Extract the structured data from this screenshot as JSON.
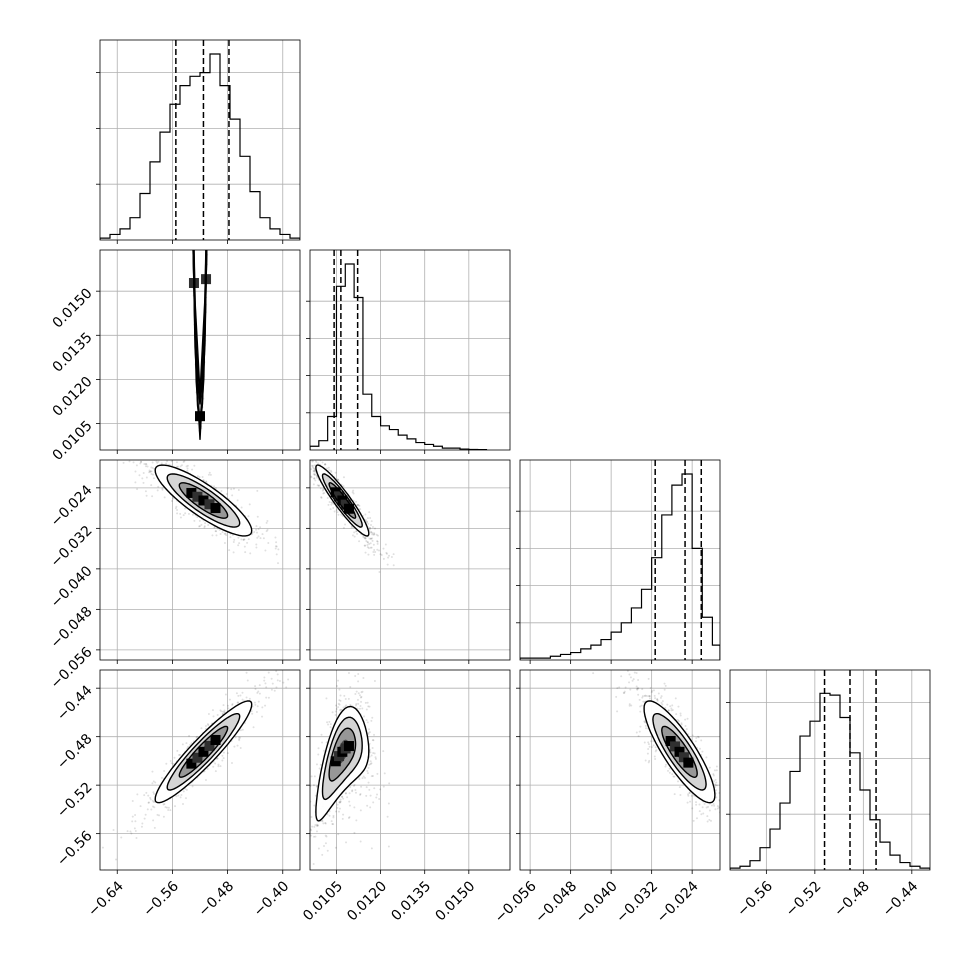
{
  "chart_data": {
    "type": "corner",
    "parameters": [
      {
        "range": [
          -0.665,
          -0.375
        ],
        "ticks": [
          -0.64,
          -0.56,
          -0.48,
          -0.4
        ],
        "tick_labels": [
          "−0.64",
          "−0.56",
          "−0.48",
          "−0.40"
        ],
        "quantiles": [
          -0.555,
          -0.515,
          -0.478
        ],
        "hist_bins": [
          -0.665,
          -0.6505,
          -0.636,
          -0.6215,
          -0.607,
          -0.5925,
          -0.578,
          -0.5635,
          -0.549,
          -0.5345,
          -0.52,
          -0.5055,
          -0.491,
          -0.4765,
          -0.462,
          -0.4475,
          -0.433,
          -0.4185,
          -0.404,
          -0.3895,
          -0.375
        ],
        "hist_counts": [
          0.01,
          0.03,
          0.06,
          0.12,
          0.25,
          0.42,
          0.58,
          0.73,
          0.83,
          0.88,
          0.9,
          1.0,
          0.83,
          0.65,
          0.45,
          0.26,
          0.12,
          0.06,
          0.03,
          0.01
        ]
      },
      {
        "range": [
          0.0096,
          0.0164
        ],
        "ticks": [
          0.0105,
          0.012,
          0.0135,
          0.015
        ],
        "tick_labels": [
          "0.0105",
          "0.0120",
          "0.0135",
          "0.0150"
        ],
        "quantiles": [
          0.01042,
          0.01065,
          0.01122
        ],
        "hist_bins": [
          0.0096,
          0.0099,
          0.0102,
          0.0105,
          0.0108,
          0.0111,
          0.0114,
          0.0117,
          0.012,
          0.0123,
          0.0126,
          0.0129,
          0.0132,
          0.0135,
          0.0138,
          0.0141,
          0.0144,
          0.0147,
          0.015,
          0.0153,
          0.0156
        ],
        "hist_counts": [
          0.02,
          0.05,
          0.18,
          0.88,
          1.0,
          0.82,
          0.3,
          0.18,
          0.13,
          0.11,
          0.08,
          0.06,
          0.04,
          0.03,
          0.02,
          0.01,
          0.01,
          0.005,
          0.003,
          0.002
        ]
      },
      {
        "range": [
          -0.058,
          -0.0185
        ],
        "ticks": [
          -0.056,
          -0.048,
          -0.04,
          -0.032,
          -0.024
        ],
        "tick_labels": [
          "−0.056",
          "−0.048",
          "−0.040",
          "−0.032",
          "−0.024"
        ],
        "quantiles": [
          -0.0313,
          -0.0254,
          -0.0222
        ],
        "hist_bins": [
          -0.058,
          -0.056,
          -0.054,
          -0.052,
          -0.05,
          -0.048,
          -0.046,
          -0.044,
          -0.042,
          -0.04,
          -0.038,
          -0.036,
          -0.034,
          -0.032,
          -0.03,
          -0.028,
          -0.026,
          -0.024,
          -0.022,
          -0.02,
          -0.0185
        ],
        "hist_counts": [
          0.01,
          0.01,
          0.01,
          0.02,
          0.03,
          0.04,
          0.06,
          0.08,
          0.11,
          0.15,
          0.2,
          0.28,
          0.38,
          0.55,
          0.78,
          0.94,
          1.0,
          0.6,
          0.23,
          0.08
        ]
      },
      {
        "range": [
          -0.59,
          -0.425
        ],
        "ticks": [
          -0.56,
          -0.52,
          -0.48,
          -0.44
        ],
        "tick_labels": [
          "−0.56",
          "−0.52",
          "−0.48",
          "−0.44"
        ],
        "quantiles": [
          -0.512,
          -0.491,
          -0.4695
        ],
        "hist_bins": [
          -0.59,
          -0.58175,
          -0.5735,
          -0.56525,
          -0.557,
          -0.54875,
          -0.5405,
          -0.53225,
          -0.524,
          -0.51575,
          -0.5075,
          -0.49925,
          -0.491,
          -0.48275,
          -0.4745,
          -0.46625,
          -0.458,
          -0.44975,
          -0.4415,
          -0.43325,
          -0.425
        ],
        "hist_counts": [
          0.01,
          0.02,
          0.05,
          0.12,
          0.22,
          0.36,
          0.53,
          0.72,
          0.8,
          0.95,
          0.94,
          0.82,
          0.63,
          0.43,
          0.27,
          0.15,
          0.08,
          0.04,
          0.02,
          0.01
        ]
      }
    ],
    "histogram_ticks": [
      [
        0.3,
        0.6,
        0.9
      ],
      [
        0.2,
        0.4,
        0.6,
        0.8
      ],
      [
        0.2,
        0.4,
        0.6,
        0.8
      ],
      [
        0.3,
        0.6,
        0.9
      ]
    ],
    "pairs": [
      {
        "row": 1,
        "col": 0,
        "mean": [
          -0.52,
          0.01075
        ],
        "sd": [
          0.035,
          0.00048
        ],
        "rho": 0.55,
        "curve": 60.0
      },
      {
        "row": 2,
        "col": 0,
        "mean": [
          -0.515,
          -0.0265
        ],
        "sd": [
          0.035,
          0.0035
        ],
        "rho": -0.85,
        "curve": 0
      },
      {
        "row": 2,
        "col": 1,
        "mean": [
          0.0107,
          -0.0265
        ],
        "sd": [
          0.00045,
          0.0035
        ],
        "rho": -0.93,
        "curve": 0
      },
      {
        "row": 3,
        "col": 0,
        "mean": [
          -0.515,
          -0.4925
        ],
        "sd": [
          0.035,
          0.021
        ],
        "rho": 0.93,
        "curve": 0
      },
      {
        "row": 3,
        "col": 1,
        "mean": [
          0.0107,
          -0.4925
        ],
        "sd": [
          0.00045,
          0.021
        ],
        "rho": 0.6,
        "curve": -30000.0
      },
      {
        "row": 3,
        "col": 2,
        "mean": [
          -0.0265,
          -0.4925
        ],
        "sd": [
          0.0035,
          0.021
        ],
        "rho": -0.85,
        "curve": 0
      }
    ],
    "contour_levels_sigma": [
      0.5,
      1.0,
      1.5,
      2.0
    ],
    "scatter_points_per_panel": 700,
    "xlabel": "",
    "ylabel": "",
    "title": "",
    "grid": true
  }
}
